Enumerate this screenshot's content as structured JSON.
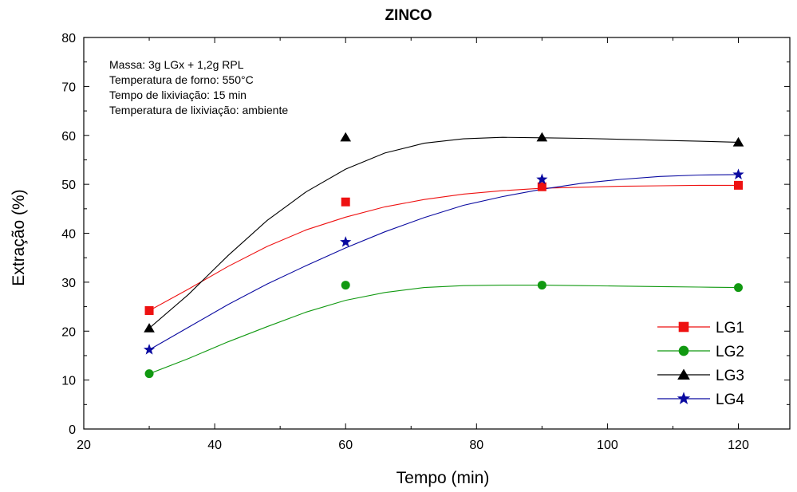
{
  "chart_data": {
    "type": "scatter",
    "title": "ZINCO",
    "xlabel": "Tempo (min)",
    "ylabel": "Extração (%)",
    "xlim": [
      20,
      130
    ],
    "ylim": [
      0,
      80
    ],
    "xticks": [
      20,
      40,
      60,
      80,
      100,
      120
    ],
    "yticks": [
      0,
      10,
      20,
      30,
      40,
      50,
      60,
      70,
      80
    ],
    "grid": false,
    "legend_position": "bottom-right",
    "annotations": [
      "Massa: 3g LGx + 1,2g RPL",
      "Temperatura de forno: 550°C",
      "Tempo de lixiviação: 15 min",
      "Temperatura de lixiviação: ambiente"
    ],
    "series": [
      {
        "name": "LG1",
        "marker": "square",
        "color": "#ee1111",
        "x": [
          30,
          60,
          90,
          120
        ],
        "y": [
          24.2,
          46.4,
          49.5,
          49.8
        ],
        "fit_curve": [
          [
            30,
            24.2
          ],
          [
            36,
            28.6
          ],
          [
            42,
            33.2
          ],
          [
            48,
            37.3
          ],
          [
            54,
            40.7
          ],
          [
            60,
            43.3
          ],
          [
            66,
            45.4
          ],
          [
            72,
            46.9
          ],
          [
            78,
            48.0
          ],
          [
            84,
            48.7
          ],
          [
            90,
            49.2
          ],
          [
            96,
            49.4
          ],
          [
            102,
            49.6
          ],
          [
            108,
            49.7
          ],
          [
            114,
            49.8
          ],
          [
            120,
            49.8
          ]
        ]
      },
      {
        "name": "LG2",
        "marker": "circle",
        "color": "#119911",
        "x": [
          30,
          60,
          90,
          120
        ],
        "y": [
          11.3,
          29.4,
          29.4,
          28.9
        ],
        "fit_curve": [
          [
            30,
            11.3
          ],
          [
            36,
            14.4
          ],
          [
            42,
            17.8
          ],
          [
            48,
            20.9
          ],
          [
            54,
            23.9
          ],
          [
            60,
            26.3
          ],
          [
            66,
            27.9
          ],
          [
            72,
            28.9
          ],
          [
            78,
            29.3
          ],
          [
            84,
            29.4
          ],
          [
            90,
            29.4
          ],
          [
            96,
            29.3
          ],
          [
            102,
            29.2
          ],
          [
            108,
            29.1
          ],
          [
            114,
            29.0
          ],
          [
            120,
            28.9
          ]
        ]
      },
      {
        "name": "LG3",
        "marker": "triangle",
        "color": "#000000",
        "x": [
          30,
          60,
          90,
          120
        ],
        "y": [
          20.6,
          59.6,
          59.6,
          58.6
        ],
        "fit_curve": [
          [
            30,
            20.6
          ],
          [
            36,
            27.5
          ],
          [
            42,
            35.4
          ],
          [
            48,
            42.6
          ],
          [
            54,
            48.5
          ],
          [
            60,
            53.1
          ],
          [
            66,
            56.4
          ],
          [
            72,
            58.4
          ],
          [
            78,
            59.3
          ],
          [
            84,
            59.6
          ],
          [
            90,
            59.5
          ],
          [
            96,
            59.4
          ],
          [
            102,
            59.2
          ],
          [
            108,
            59.0
          ],
          [
            114,
            58.8
          ],
          [
            120,
            58.6
          ]
        ]
      },
      {
        "name": "LG4",
        "marker": "star",
        "color": "#0a0aa0",
        "x": [
          30,
          60,
          90,
          120
        ],
        "y": [
          16.2,
          38.2,
          51.0,
          52.0
        ],
        "fit_curve": [
          [
            30,
            16.2
          ],
          [
            36,
            20.8
          ],
          [
            42,
            25.4
          ],
          [
            48,
            29.6
          ],
          [
            54,
            33.4
          ],
          [
            60,
            37.0
          ],
          [
            66,
            40.3
          ],
          [
            72,
            43.2
          ],
          [
            78,
            45.7
          ],
          [
            84,
            47.5
          ],
          [
            90,
            49.0
          ],
          [
            96,
            50.2
          ],
          [
            102,
            51.0
          ],
          [
            108,
            51.6
          ],
          [
            114,
            51.9
          ],
          [
            120,
            52.0
          ]
        ]
      }
    ]
  }
}
